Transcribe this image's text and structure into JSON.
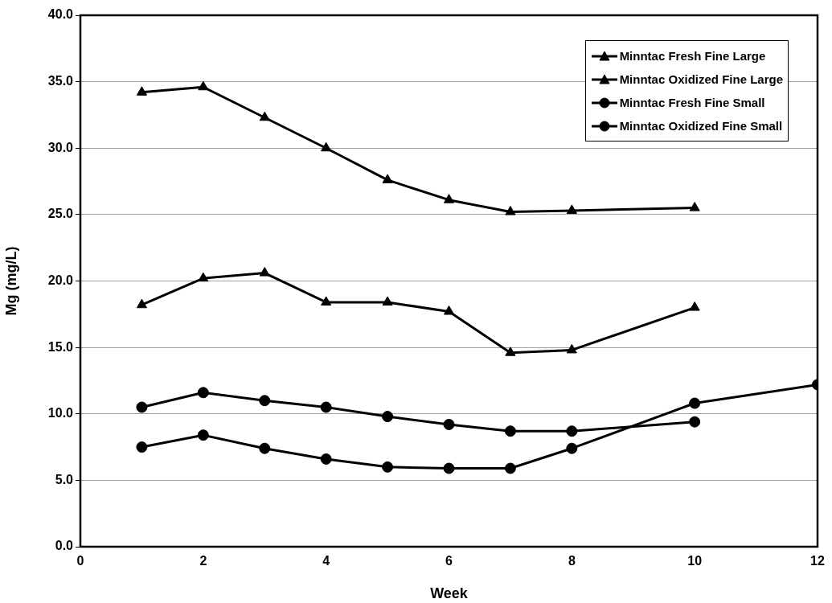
{
  "chart_data": {
    "type": "line",
    "xlabel": "Week",
    "ylabel": "Mg (mg/L)",
    "xlim": [
      0,
      12
    ],
    "xticks": [
      0,
      2,
      4,
      6,
      8,
      10,
      12
    ],
    "ylim": [
      0,
      40
    ],
    "yticks": [
      {
        "value": 0,
        "label": "0.0"
      },
      {
        "value": 5,
        "label": "5.0"
      },
      {
        "value": 10,
        "label": "10.0"
      },
      {
        "value": 15,
        "label": "15.0"
      },
      {
        "value": 20,
        "label": "20.0"
      },
      {
        "value": 25,
        "label": "25.0"
      },
      {
        "value": 30,
        "label": "30.0"
      },
      {
        "value": 35,
        "label": "35.0"
      },
      {
        "value": 40,
        "label": "40.0"
      }
    ],
    "grid": "y",
    "legend": "top right",
    "line_style": "solid",
    "series": [
      {
        "name": "Minntac Fresh Fine Large",
        "color": "#000000",
        "marker": "triangle",
        "x": [
          1,
          2,
          3,
          4,
          5,
          6,
          7,
          8,
          10
        ],
        "values": [
          18.2,
          20.2,
          20.6,
          18.4,
          18.4,
          17.7,
          14.6,
          14.8,
          18.0
        ]
      },
      {
        "name": "Minntac Oxidized Fine Large",
        "color": "#000000",
        "marker": "triangle",
        "x": [
          1,
          2,
          3,
          4,
          5,
          6,
          7,
          8,
          10
        ],
        "values": [
          34.2,
          34.6,
          32.3,
          30.0,
          27.6,
          26.1,
          25.2,
          25.3,
          25.5
        ]
      },
      {
        "name": "Minntac Fresh Fine Small",
        "color": "#000000",
        "marker": "circle",
        "x": [
          1,
          2,
          3,
          4,
          5,
          6,
          7,
          8,
          10,
          12
        ],
        "values": [
          7.5,
          8.4,
          7.4,
          6.6,
          6.0,
          5.9,
          5.9,
          7.4,
          10.8,
          12.2
        ]
      },
      {
        "name": "Minntac Oxidized Fine Small",
        "color": "#000000",
        "marker": "circle",
        "x": [
          1,
          2,
          3,
          4,
          5,
          6,
          7,
          8,
          10
        ],
        "values": [
          10.5,
          11.6,
          11.0,
          10.5,
          9.8,
          9.2,
          8.7,
          8.7,
          9.4
        ]
      }
    ]
  }
}
